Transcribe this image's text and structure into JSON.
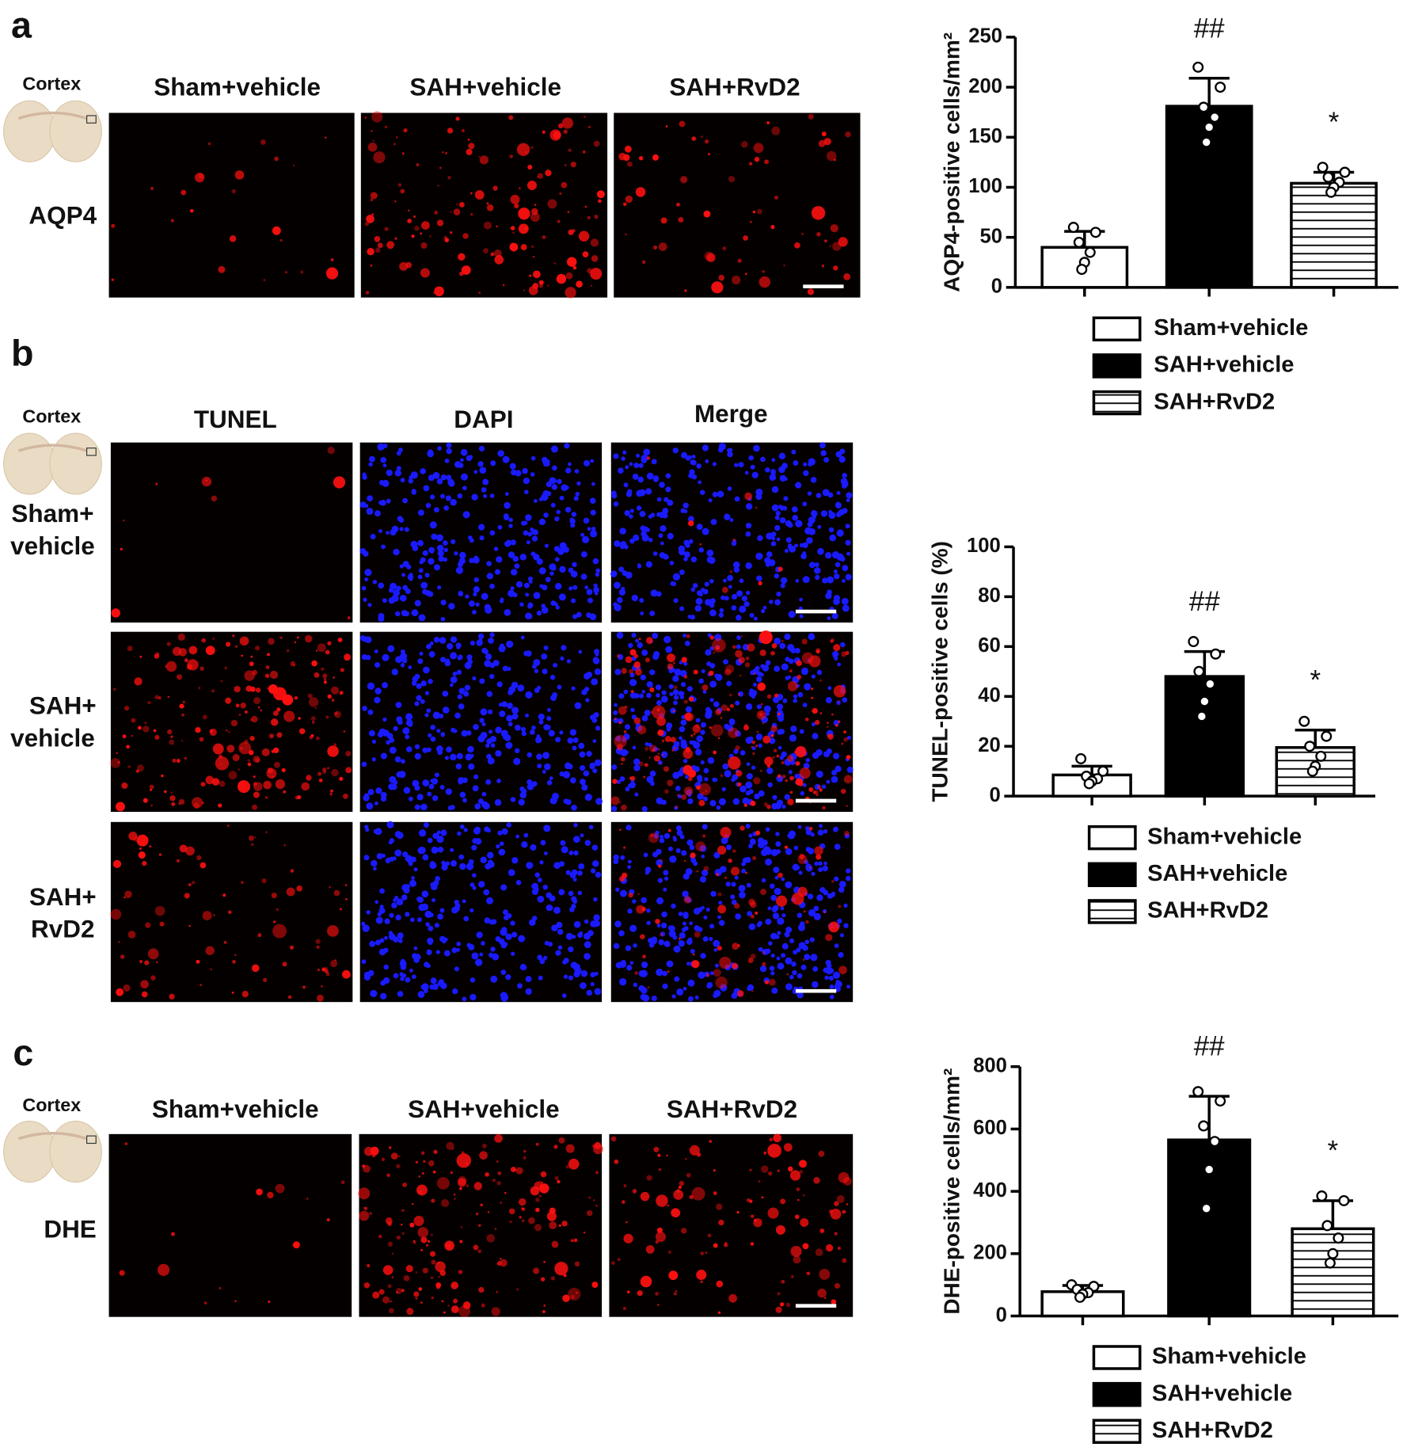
{
  "panels": [
    {
      "label": "a",
      "region": "Cortex",
      "stain": "AQP4",
      "columns": [
        "Sham+vehicle",
        "SAH+vehicle",
        "SAH+RvD2"
      ]
    },
    {
      "label": "b",
      "region": "Cortex",
      "columns": [
        "TUNEL",
        "DAPI",
        "Merge"
      ],
      "rows": [
        [
          "Sham+",
          "vehicle"
        ],
        [
          "SAH+",
          "vehicle"
        ],
        [
          "SAH+",
          "RvD2"
        ]
      ]
    },
    {
      "label": "c",
      "region": "Cortex",
      "stain": "DHE",
      "columns": [
        "Sham+vehicle",
        "SAH+vehicle",
        "SAH+RvD2"
      ]
    }
  ],
  "chart_data": [
    {
      "type": "bar",
      "ylabel": "AQP4-positive cells/mm²",
      "ylim": [
        0,
        250
      ],
      "yticks": [
        0,
        50,
        100,
        150,
        200,
        250
      ],
      "series": [
        {
          "name": "Sham+vehicle",
          "color": "#ffffff",
          "values": [
            40
          ],
          "errors": [
            16
          ],
          "points": [
            60,
            55,
            45,
            35,
            25,
            18
          ]
        },
        {
          "name": "SAH+vehicle",
          "color": "#000000",
          "values": [
            181
          ],
          "errors": [
            28
          ],
          "points": [
            220,
            200,
            180,
            170,
            160,
            145
          ],
          "annotation": "##"
        },
        {
          "name": "SAH+RvD2",
          "color": "#ffffff",
          "pattern": "horizontal-lines",
          "values": [
            104
          ],
          "errors": [
            11
          ],
          "points": [
            120,
            115,
            110,
            105,
            100,
            95
          ],
          "annotation": "*"
        }
      ]
    },
    {
      "type": "bar",
      "ylabel": "TUNEL-positive cells (%)",
      "ylim": [
        0,
        100
      ],
      "yticks": [
        0,
        20,
        40,
        60,
        80,
        100
      ],
      "series": [
        {
          "name": "Sham+vehicle",
          "color": "#ffffff",
          "values": [
            8.5
          ],
          "errors": [
            3.5
          ],
          "points": [
            15,
            10,
            8,
            7,
            6,
            5
          ]
        },
        {
          "name": "SAH+vehicle",
          "color": "#000000",
          "values": [
            48
          ],
          "errors": [
            10
          ],
          "points": [
            62,
            57,
            50,
            45,
            38,
            32
          ],
          "annotation": "##"
        },
        {
          "name": "SAH+RvD2",
          "color": "#ffffff",
          "pattern": "horizontal-lines",
          "values": [
            19.5
          ],
          "errors": [
            7
          ],
          "points": [
            30,
            24,
            20,
            16,
            12,
            10
          ],
          "annotation": "*"
        }
      ]
    },
    {
      "type": "bar",
      "ylabel": "DHE-positive cells/mm²",
      "ylim": [
        0,
        800
      ],
      "yticks": [
        0,
        200,
        400,
        600,
        800
      ],
      "series": [
        {
          "name": "Sham+vehicle",
          "color": "#ffffff",
          "values": [
            78
          ],
          "errors": [
            20
          ],
          "points": [
            100,
            95,
            85,
            75,
            70,
            60
          ]
        },
        {
          "name": "SAH+vehicle",
          "color": "#000000",
          "values": [
            565
          ],
          "errors": [
            140
          ],
          "points": [
            720,
            690,
            610,
            560,
            470,
            345
          ],
          "annotation": "##"
        },
        {
          "name": "SAH+RvD2",
          "color": "#ffffff",
          "pattern": "horizontal-lines",
          "values": [
            280
          ],
          "errors": [
            90
          ],
          "points": [
            385,
            370,
            290,
            250,
            200,
            170
          ],
          "annotation": "*"
        }
      ]
    }
  ]
}
